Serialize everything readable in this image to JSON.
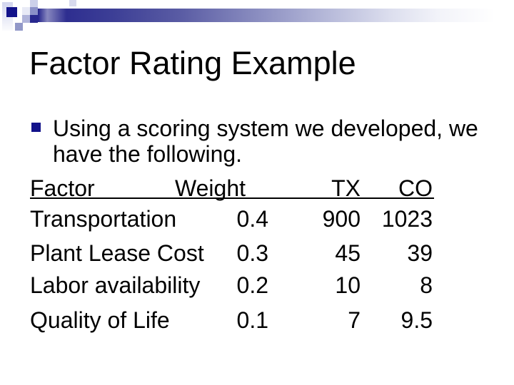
{
  "slide": {
    "title": "Factor Rating Example",
    "bullet": {
      "lines": [
        "Using a scoring system we developed, we",
        "have the following."
      ]
    },
    "table": {
      "header": {
        "factor": "Factor",
        "weight": "Weight",
        "tx": "TX",
        "co": "CO"
      },
      "rows": [
        {
          "factor": "Transportation",
          "weight": "0.4",
          "tx": "900",
          "co": "1023"
        },
        {
          "factor": "Plant Lease Cost",
          "weight": "0.3",
          "tx": "45",
          "co": "39"
        },
        {
          "factor": "Labor availability",
          "weight": "0.2",
          "tx": "10",
          "co": "8"
        },
        {
          "factor": "Quality of Life",
          "weight": "0.1",
          "tx": "7",
          "co": "9.5"
        }
      ]
    },
    "colors": {
      "accent_navy": "#12128a",
      "bar_gradient_start": "#23238c",
      "bar_gradient_end": "#ffffff",
      "text": "#000000",
      "background": "#ffffff"
    }
  }
}
